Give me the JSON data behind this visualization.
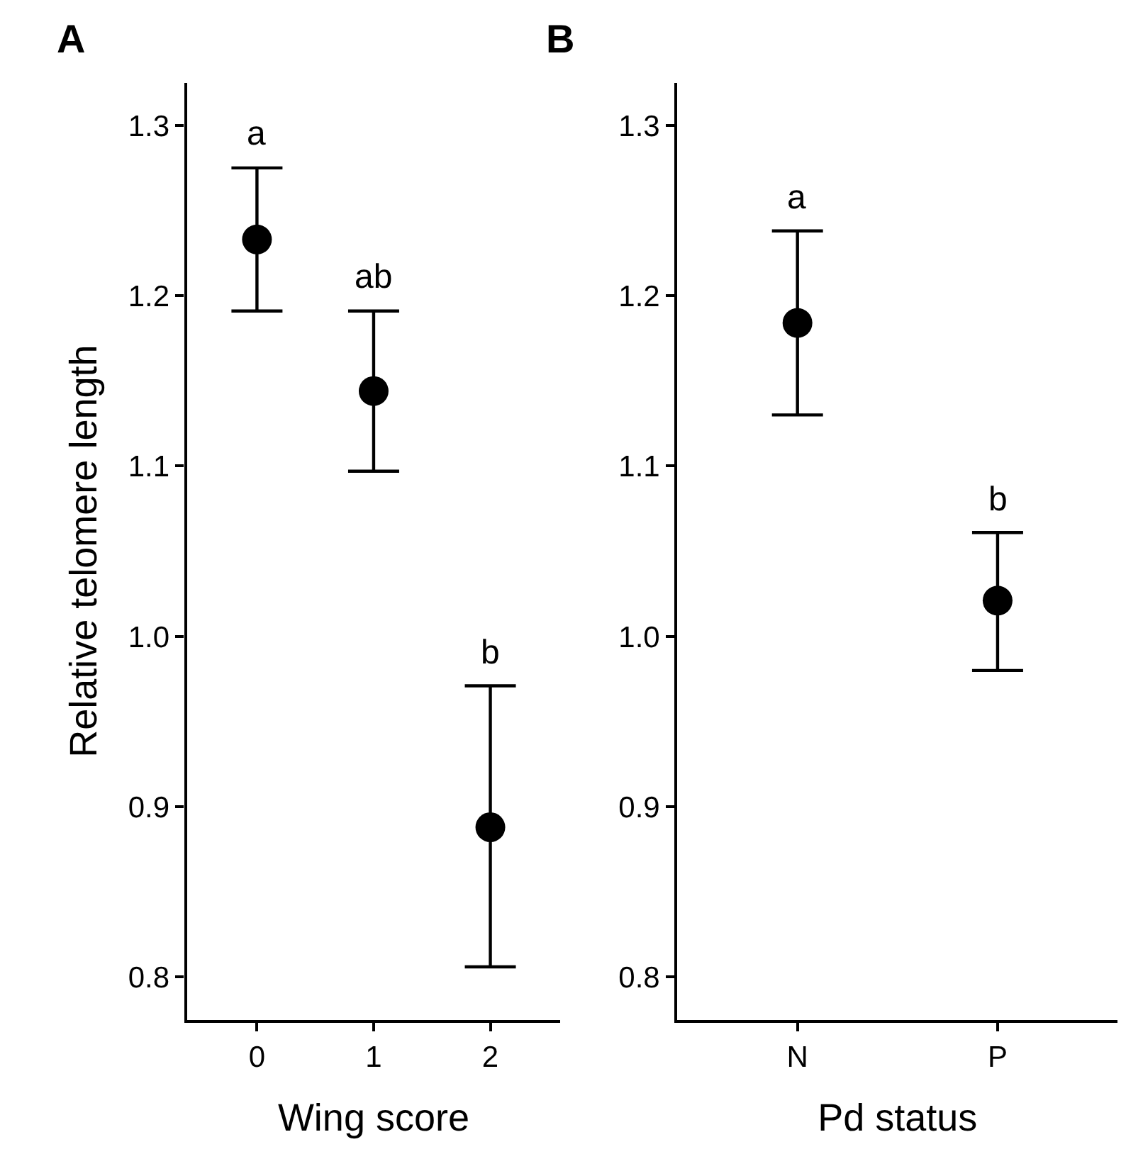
{
  "chart_data": [
    {
      "type": "scatter",
      "title": "A",
      "xlabel": "Wing score",
      "ylabel": "Relative telomere length",
      "categories": [
        "0",
        "1",
        "2"
      ],
      "series": [
        {
          "color": "#000000",
          "values": [
            1.233,
            1.144,
            0.888
          ],
          "errors": [
            [
              1.191,
              1.275
            ],
            [
              1.097,
              1.191
            ],
            [
              0.806,
              0.971
            ]
          ]
        }
      ],
      "ylim": [
        0.775,
        1.325
      ],
      "yticks": [
        0.8,
        0.9,
        {
          "value": 1.0,
          "label": "1.0"
        },
        1.1,
        1.2,
        1.3
      ],
      "marker": "circle",
      "annotations": [
        "a",
        "ab",
        "b"
      ]
    },
    {
      "type": "scatter",
      "title": "B",
      "xlabel": "Pd status",
      "categories": [
        "N",
        "P"
      ],
      "series": [
        {
          "color": "#000000",
          "values": [
            1.184,
            1.021
          ],
          "errors": [
            [
              1.13,
              1.238
            ],
            [
              0.98,
              1.061
            ]
          ]
        }
      ],
      "ylim": [
        0.775,
        1.325
      ],
      "yticks": [
        0.8,
        0.9,
        {
          "value": 1.0,
          "label": "1.0"
        },
        1.1,
        1.2,
        1.3
      ],
      "marker": "circle",
      "annotations": [
        "a",
        "b"
      ]
    }
  ]
}
